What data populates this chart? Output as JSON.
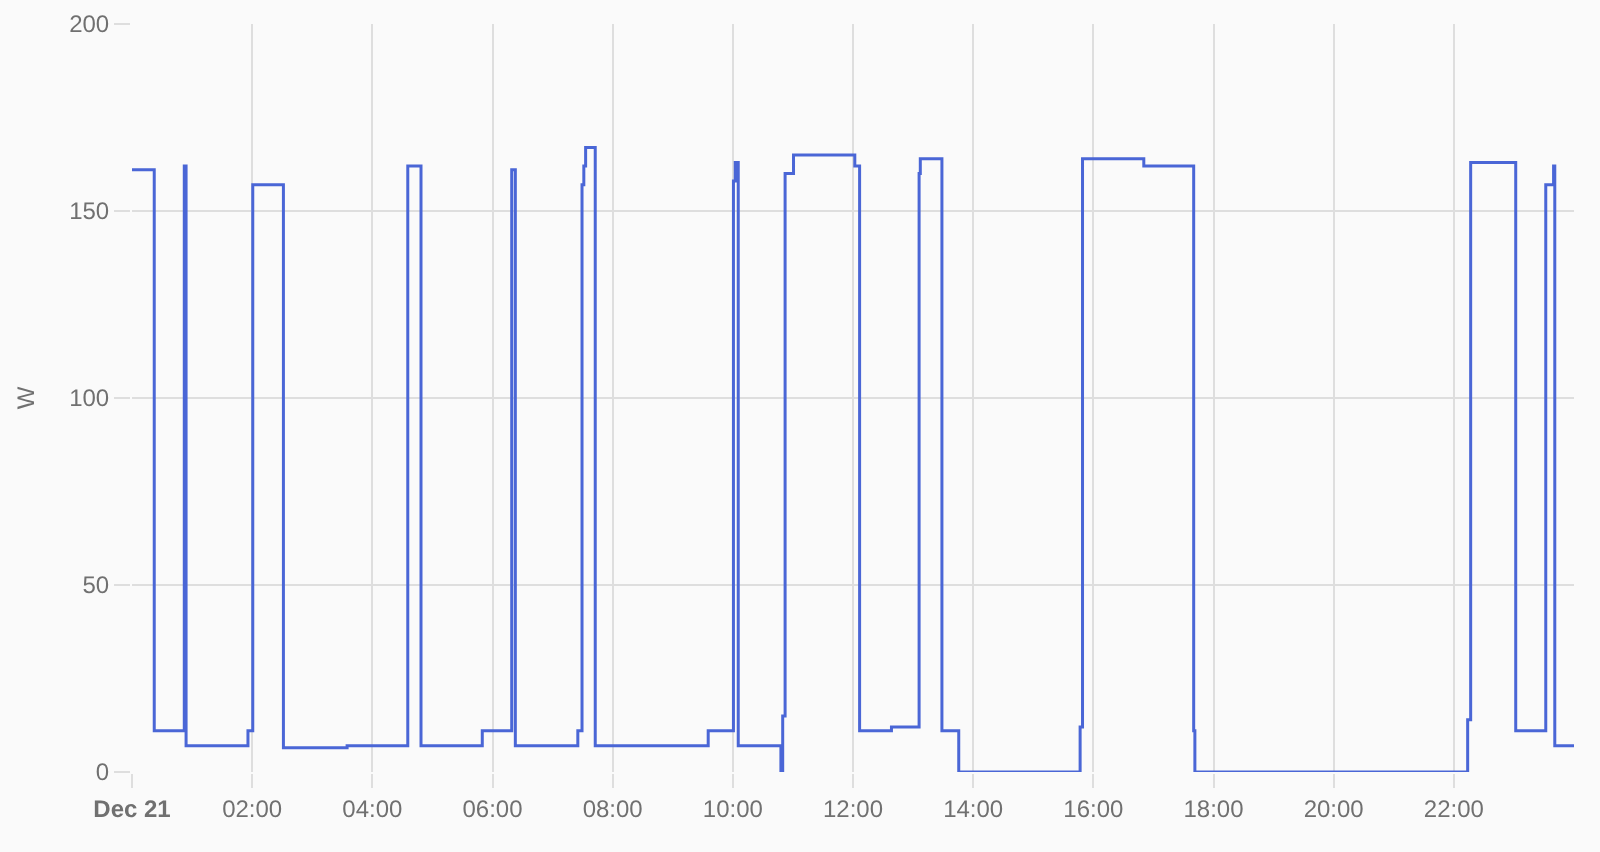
{
  "chart_data": {
    "type": "step",
    "ylabel": "W",
    "x": [
      0.0,
      0.37,
      0.87,
      0.9,
      1.93,
      2.01,
      2.52,
      3.58,
      4.59,
      4.81,
      5.83,
      6.32,
      6.38,
      7.42,
      7.49,
      7.52,
      7.55,
      7.71,
      9.59,
      10.01,
      10.04,
      10.09,
      10.8,
      10.83,
      10.87,
      11.01,
      12.03,
      12.11,
      12.64,
      13.1,
      13.12,
      13.48,
      13.76,
      15.78,
      15.82,
      16.84,
      17.67,
      17.69,
      22.23,
      22.28,
      23.03,
      23.53,
      23.66,
      23.68,
      24.0
    ],
    "series": [
      {
        "color": "#4a66d6",
        "values": [
          161,
          11,
          162,
          7,
          11,
          157,
          6.5,
          7,
          162,
          7,
          11,
          161,
          7,
          11,
          157,
          162,
          167,
          7,
          11,
          158,
          163,
          7,
          0,
          15,
          160,
          165,
          162,
          11,
          12,
          160,
          164,
          11,
          0,
          12,
          164,
          162,
          11,
          0,
          14,
          163,
          11,
          157,
          162,
          7,
          7
        ]
      }
    ],
    "xlim": [
      0,
      24
    ],
    "xticks": [
      {
        "value": 0,
        "label": "Dec 21"
      },
      {
        "value": 2,
        "label": "02:00"
      },
      {
        "value": 4,
        "label": "04:00"
      },
      {
        "value": 6,
        "label": "06:00"
      },
      {
        "value": 8,
        "label": "08:00"
      },
      {
        "value": 10,
        "label": "10:00"
      },
      {
        "value": 12,
        "label": "12:00"
      },
      {
        "value": 14,
        "label": "14:00"
      },
      {
        "value": 16,
        "label": "16:00"
      },
      {
        "value": 18,
        "label": "18:00"
      },
      {
        "value": 20,
        "label": "20:00"
      },
      {
        "value": 22,
        "label": "22:00"
      }
    ],
    "ylim": [
      0,
      200
    ],
    "yticks": [
      0,
      50,
      100,
      150,
      200
    ],
    "grid": true,
    "line_style": "solid"
  }
}
